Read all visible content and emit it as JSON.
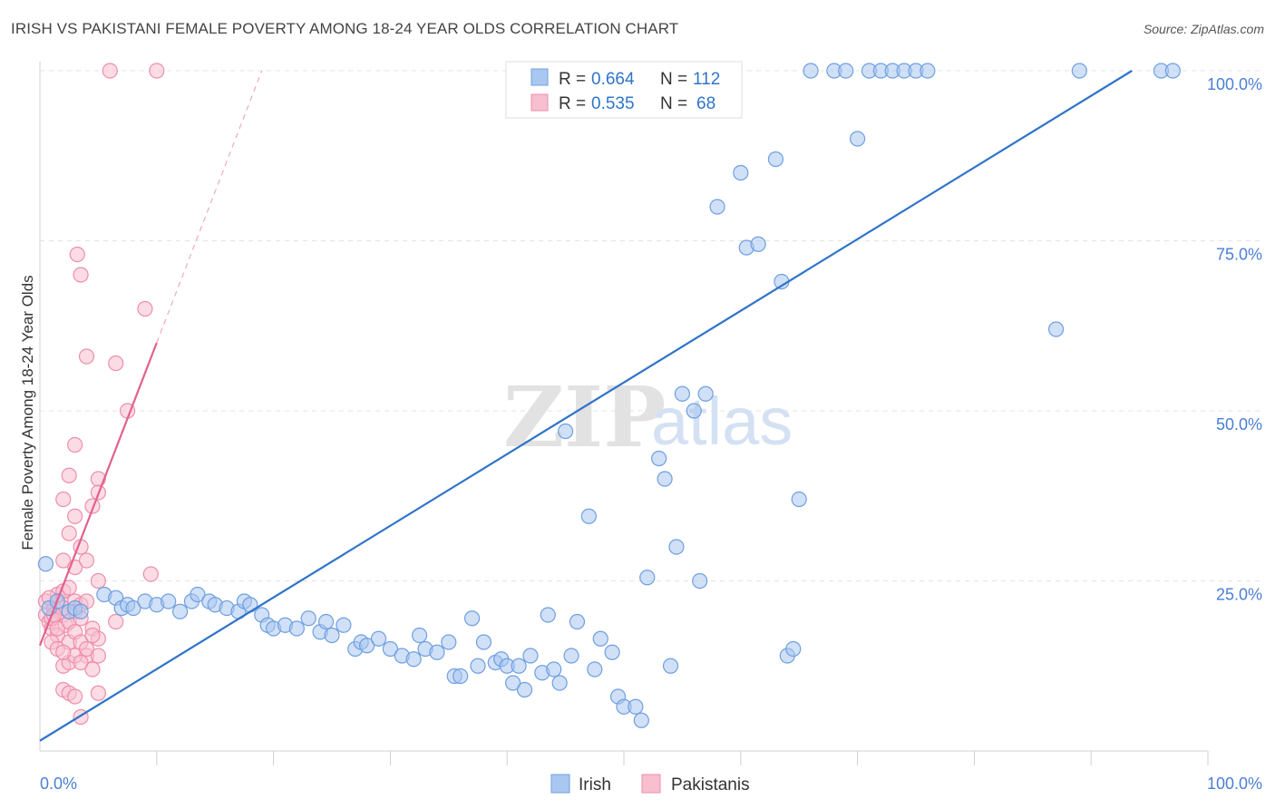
{
  "title": "IRISH VS PAKISTANI FEMALE POVERTY AMONG 18-24 YEAR OLDS CORRELATION CHART",
  "source": "Source: ZipAtlas.com",
  "watermark": {
    "zip": "ZIP",
    "atlas": "atlas"
  },
  "colors": {
    "irish_fill": "#a9c7f0",
    "irish_stroke": "#6f9fe0",
    "irish_line": "#2f74c9",
    "pak_fill": "#f7bfd0",
    "pak_stroke": "#ee8eab",
    "pak_line": "#e2608f",
    "tick_text": "#4a7fd4",
    "grid": "#e3e3e3"
  },
  "legend": {
    "rows": [
      {
        "r_label": "R = ",
        "r_value": "0.664",
        "n_label": "N = ",
        "n_value": "112"
      },
      {
        "r_label": "R = ",
        "r_value": "0.535",
        "n_label": "N = ",
        "n_value": "68"
      }
    ]
  },
  "chart_data": {
    "type": "scatter",
    "xlabel": "",
    "ylabel": "Female Poverty Among 18-24 Year Olds",
    "xlim": [
      0,
      100
    ],
    "ylim": [
      0,
      100
    ],
    "y_ticks": [
      {
        "value": 25,
        "label": "25.0%"
      },
      {
        "value": 50,
        "label": "50.0%"
      },
      {
        "value": 75,
        "label": "75.0%"
      },
      {
        "value": 100,
        "label": "100.0%"
      }
    ],
    "x_tick_labels": {
      "left": "0.0%",
      "right": "100.0%"
    },
    "grid": true,
    "legend_position": "top-center",
    "series": [
      {
        "name": "Irish",
        "trend": {
          "x0": 0,
          "y0": 1.5,
          "x1": 93.5,
          "y1": 100
        },
        "points": [
          [
            0.5,
            27.5
          ],
          [
            0.8,
            21
          ],
          [
            1.5,
            22
          ],
          [
            2.5,
            20.5
          ],
          [
            3,
            21
          ],
          [
            3.5,
            20.5
          ],
          [
            5.5,
            23
          ],
          [
            6.5,
            22.5
          ],
          [
            7,
            21
          ],
          [
            7.5,
            21.5
          ],
          [
            8,
            21
          ],
          [
            9,
            22
          ],
          [
            10,
            21.5
          ],
          [
            11,
            22
          ],
          [
            12,
            20.5
          ],
          [
            13,
            22
          ],
          [
            13.5,
            23
          ],
          [
            14.5,
            22
          ],
          [
            15,
            21.5
          ],
          [
            16,
            21
          ],
          [
            17,
            20.5
          ],
          [
            17.5,
            22
          ],
          [
            18,
            21.5
          ],
          [
            19,
            20
          ],
          [
            19.5,
            18.5
          ],
          [
            20,
            18
          ],
          [
            21,
            18.5
          ],
          [
            22,
            18
          ],
          [
            23,
            19.5
          ],
          [
            24,
            17.5
          ],
          [
            24.5,
            19
          ],
          [
            25,
            17
          ],
          [
            26,
            18.5
          ],
          [
            27,
            15
          ],
          [
            27.5,
            16
          ],
          [
            28,
            15.5
          ],
          [
            29,
            16.5
          ],
          [
            30,
            15
          ],
          [
            31,
            14
          ],
          [
            32,
            13.5
          ],
          [
            32.5,
            17
          ],
          [
            33,
            15
          ],
          [
            34,
            14.5
          ],
          [
            35,
            16
          ],
          [
            35.5,
            11
          ],
          [
            36,
            11
          ],
          [
            37,
            19.5
          ],
          [
            37.5,
            12.5
          ],
          [
            38,
            16
          ],
          [
            39,
            13
          ],
          [
            39.5,
            13.5
          ],
          [
            40,
            12.5
          ],
          [
            40.5,
            10
          ],
          [
            41,
            12.5
          ],
          [
            41.5,
            9
          ],
          [
            42,
            14
          ],
          [
            43,
            11.5
          ],
          [
            43.5,
            20
          ],
          [
            44,
            12
          ],
          [
            44.5,
            10
          ],
          [
            45,
            47
          ],
          [
            45.5,
            14
          ],
          [
            46,
            19
          ],
          [
            47,
            34.5
          ],
          [
            47.5,
            12
          ],
          [
            48,
            16.5
          ],
          [
            49,
            14.5
          ],
          [
            49.5,
            8
          ],
          [
            50,
            6.5
          ],
          [
            51,
            6.5
          ],
          [
            51.5,
            4.5
          ],
          [
            52,
            25.5
          ],
          [
            53,
            43
          ],
          [
            53.5,
            40
          ],
          [
            54,
            12.5
          ],
          [
            54.5,
            30
          ],
          [
            55,
            52.5
          ],
          [
            56,
            50
          ],
          [
            56.5,
            25
          ],
          [
            57,
            52.5
          ],
          [
            58,
            80
          ],
          [
            60,
            85
          ],
          [
            60.5,
            74
          ],
          [
            61.5,
            74.5
          ],
          [
            63,
            87
          ],
          [
            63.5,
            69
          ],
          [
            64,
            14
          ],
          [
            64.5,
            15
          ],
          [
            65,
            37
          ],
          [
            66,
            100
          ],
          [
            68,
            100
          ],
          [
            69,
            100
          ],
          [
            70,
            90
          ],
          [
            71,
            100
          ],
          [
            72,
            100
          ],
          [
            73,
            100
          ],
          [
            74,
            100
          ],
          [
            75,
            100
          ],
          [
            76,
            100
          ],
          [
            87,
            62
          ],
          [
            89,
            100
          ],
          [
            96,
            100
          ],
          [
            97,
            100
          ]
        ]
      },
      {
        "name": "Pakistanis",
        "trend": {
          "x0": 0,
          "y0": 15.5,
          "x1": 10,
          "y1": 60,
          "dash_to_x": 19,
          "dash_to_y": 100
        },
        "points": [
          [
            0.5,
            22
          ],
          [
            0.5,
            20
          ],
          [
            0.8,
            19
          ],
          [
            1,
            18
          ],
          [
            1.2,
            21
          ],
          [
            1.5,
            17
          ],
          [
            1.8,
            22
          ],
          [
            2,
            20
          ],
          [
            2.2,
            18.5
          ],
          [
            2.5,
            16
          ],
          [
            1,
            19.5
          ],
          [
            1.5,
            18
          ],
          [
            2,
            21
          ],
          [
            2.5,
            19
          ],
          [
            3,
            22
          ],
          [
            3,
            17.5
          ],
          [
            3.5,
            16
          ],
          [
            4,
            14
          ],
          [
            4.5,
            18
          ],
          [
            5,
            16.5
          ],
          [
            2,
            12.5
          ],
          [
            2.5,
            13
          ],
          [
            3,
            14
          ],
          [
            3.5,
            13
          ],
          [
            2,
            9
          ],
          [
            2.5,
            8.5
          ],
          [
            3,
            8
          ],
          [
            3.5,
            5
          ],
          [
            5,
            8.5
          ],
          [
            4.5,
            12
          ],
          [
            2,
            28
          ],
          [
            2.5,
            32
          ],
          [
            3,
            27
          ],
          [
            2,
            37
          ],
          [
            2.5,
            40.5
          ],
          [
            3,
            34.5
          ],
          [
            3.5,
            30
          ],
          [
            4,
            28
          ],
          [
            4.5,
            36
          ],
          [
            5,
            40
          ],
          [
            5,
            38
          ],
          [
            5,
            25
          ],
          [
            3,
            45
          ],
          [
            3.2,
            73
          ],
          [
            3.5,
            70
          ],
          [
            4,
            58
          ],
          [
            6.5,
            57
          ],
          [
            6.5,
            19
          ],
          [
            7.5,
            50
          ],
          [
            9,
            65
          ],
          [
            9.5,
            26
          ],
          [
            6,
            100
          ],
          [
            10,
            100
          ],
          [
            1.5,
            23
          ],
          [
            2,
            23.5
          ],
          [
            2.5,
            24
          ],
          [
            3.5,
            21.5
          ],
          [
            4,
            15
          ],
          [
            4.5,
            17
          ],
          [
            5,
            14
          ],
          [
            1,
            16
          ],
          [
            1.5,
            15
          ],
          [
            2,
            14.5
          ],
          [
            3,
            20.5
          ],
          [
            3.5,
            19.5
          ],
          [
            4,
            22
          ],
          [
            0.8,
            22.5
          ],
          [
            1.2,
            20
          ]
        ]
      }
    ]
  },
  "bottom_legend": [
    {
      "label": "Irish"
    },
    {
      "label": "Pakistanis"
    }
  ]
}
